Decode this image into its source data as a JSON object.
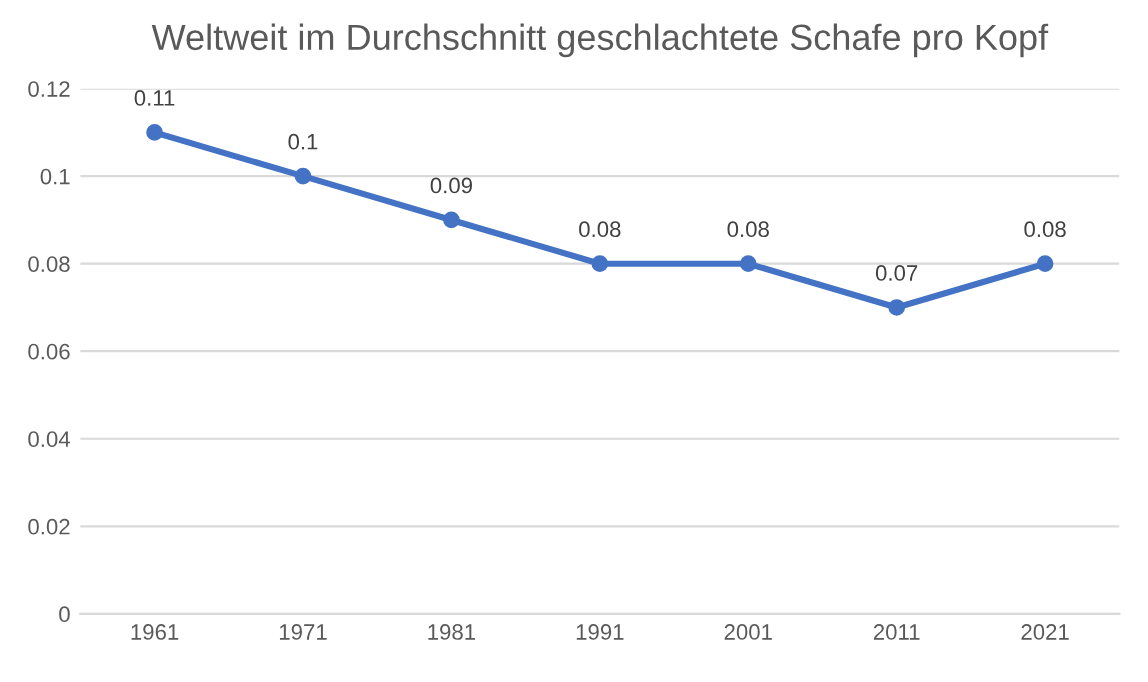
{
  "chart_data": {
    "type": "line",
    "title": "Weltweit im Durchschnitt geschlachtete Schafe pro Kopf",
    "categories": [
      "1961",
      "1971",
      "1981",
      "1991",
      "2001",
      "2011",
      "2021"
    ],
    "series": [
      {
        "color": "#4472c4",
        "values": [
          0.11,
          0.1,
          0.09,
          0.08,
          0.08,
          0.07,
          0.08
        ]
      }
    ],
    "ylim": [
      0,
      0.12
    ],
    "yticks": [
      0,
      0.02,
      0.04,
      0.06,
      0.08,
      0.1,
      0.12
    ],
    "grid": "y",
    "data_labels": true,
    "marker": "circle",
    "line_style": "solid"
  }
}
